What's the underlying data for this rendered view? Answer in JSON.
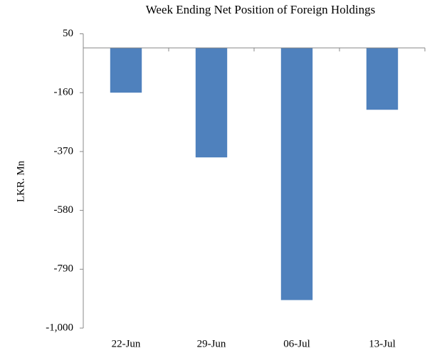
{
  "chart_data": {
    "type": "bar",
    "title": "Week Ending Net Position of Foreign Holdings",
    "y_label": "LKR. Mn",
    "categories": [
      "22-Jun",
      "29-Jun",
      "06-Jul",
      "13-Jul"
    ],
    "values": [
      -160,
      -391,
      -900,
      -221
    ],
    "color": "#4f81bd",
    "ylim": [
      -1000,
      50
    ],
    "yticks": [
      50,
      -160,
      -370,
      -580,
      -790,
      {
        "value": -1000,
        "label": "-1,000"
      }
    ],
    "grid": false
  }
}
